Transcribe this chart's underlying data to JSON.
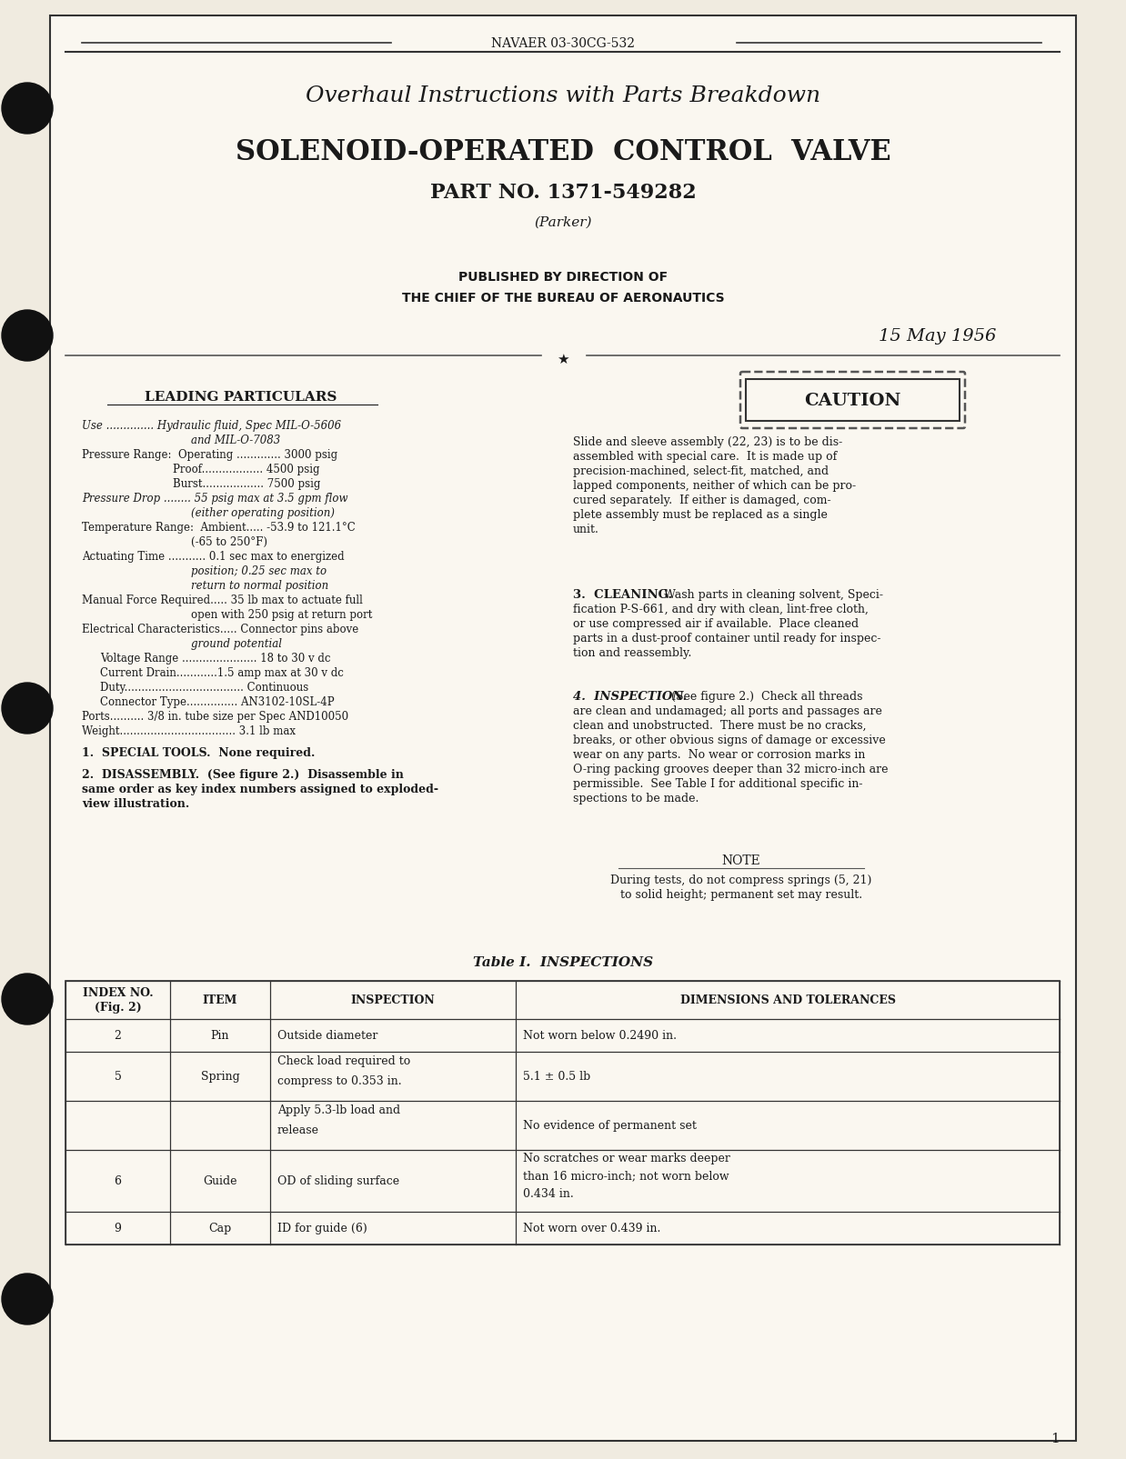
{
  "bg_color": "#f0ebe0",
  "page_bg": "#faf7f0",
  "header_doc_num": "NAVAER 03-30CG-532",
  "title_line1": "Overhaul Instructions with Parts Breakdown",
  "title_line2": "SOLENOID-OPERATED  CONTROL  VALVE",
  "title_line3": "PART NO. 1371-549282",
  "title_line4": "(Parker)",
  "published_line1": "PUBLISHED BY DIRECTION OF",
  "published_line2": "THE CHIEF OF THE BUREAU OF AERONAUTICS",
  "date": "15 May 1956",
  "leading_particulars_title": "LEADING PARTICULARS",
  "section1": "1.  SPECIAL TOOLS.  None required.",
  "caution_title": "CAUTION",
  "note_title": "NOTE",
  "table_title": "Table I.  INSPECTIONS",
  "table_headers": [
    "INDEX NO.\n(Fig. 2)",
    "ITEM",
    "INSPECTION",
    "DIMENSIONS AND TOLERANCES"
  ],
  "table_rows": [
    [
      "2",
      "Pin",
      "Outside diameter",
      "Not worn below 0.2490 in."
    ],
    [
      "5",
      "Spring",
      "Check load required to\ncompress to 0.353 in.",
      "5.1 ± 0.5 lb"
    ],
    [
      "",
      "",
      "Apply 5.3-lb load and\nrelease",
      "No evidence of permanent set"
    ],
    [
      "6",
      "Guide",
      "OD of sliding surface",
      "No scratches or wear marks deeper\nthan 16 micro-inch; not worn below\n0.434 in."
    ],
    [
      "9",
      "Cap",
      "ID for guide (6)",
      "Not worn over 0.439 in."
    ]
  ],
  "page_number": "1"
}
